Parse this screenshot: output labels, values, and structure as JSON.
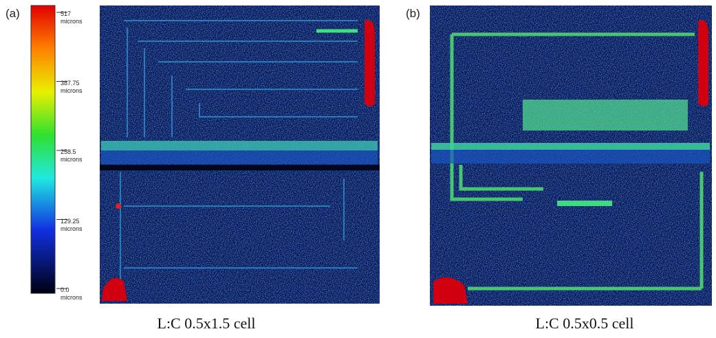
{
  "panels": [
    {
      "label": "(a)",
      "caption": "L:C 0.5x1.5 cell"
    },
    {
      "label": "(b)",
      "caption": "L:C 0.5x0.5 cell"
    }
  ],
  "colorbar": {
    "lim": [
      0,
      517
    ],
    "ticks": [
      {
        "value": 517,
        "label": "517 microns"
      },
      {
        "value": 387.75,
        "label": "387.75 microns"
      },
      {
        "value": 258.5,
        "label": "258.5 microns"
      },
      {
        "value": 129.25,
        "label": "129.25 microns"
      },
      {
        "value": 0,
        "label": "0.0 microns"
      }
    ]
  }
}
